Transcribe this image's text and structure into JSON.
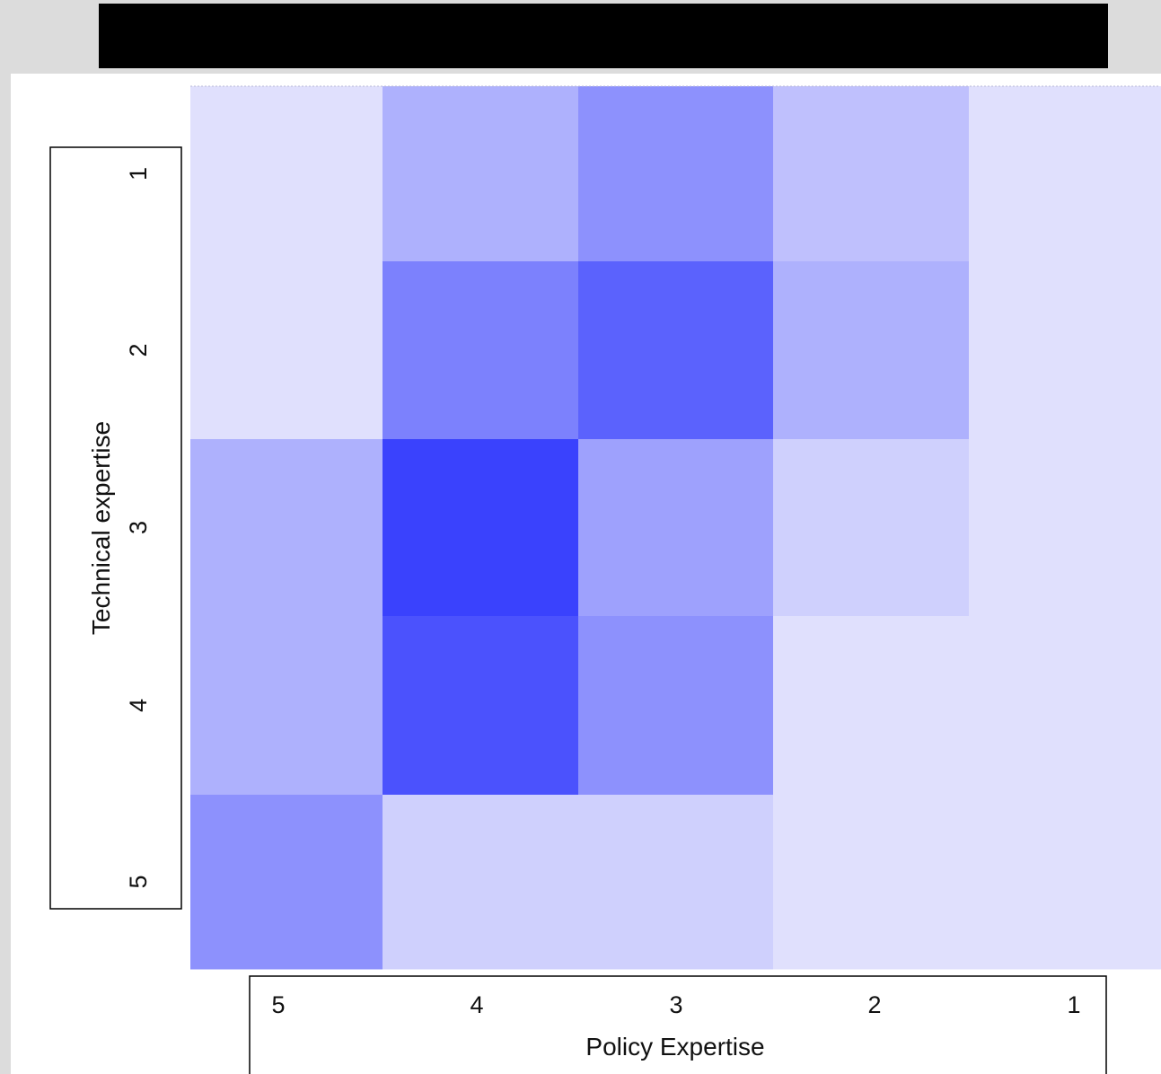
{
  "chart_data": {
    "type": "heatmap",
    "title": "",
    "xlabel": "Policy Expertise",
    "ylabel": "Technical expertise",
    "x_categories": [
      "5",
      "4",
      "3",
      "2",
      "1"
    ],
    "y_categories": [
      "1",
      "2",
      "3",
      "4",
      "5"
    ],
    "values": [
      [
        1,
        4,
        6,
        3,
        1
      ],
      [
        1,
        7,
        9,
        4,
        1
      ],
      [
        4,
        11,
        5,
        2,
        1
      ],
      [
        4,
        10,
        6,
        1,
        1
      ],
      [
        6,
        2,
        2,
        1,
        1
      ]
    ],
    "value_range": [
      1,
      11
    ],
    "color_low": "#e0e0fd",
    "color_high": "#3a42fd",
    "grid": false,
    "legend": "none"
  }
}
